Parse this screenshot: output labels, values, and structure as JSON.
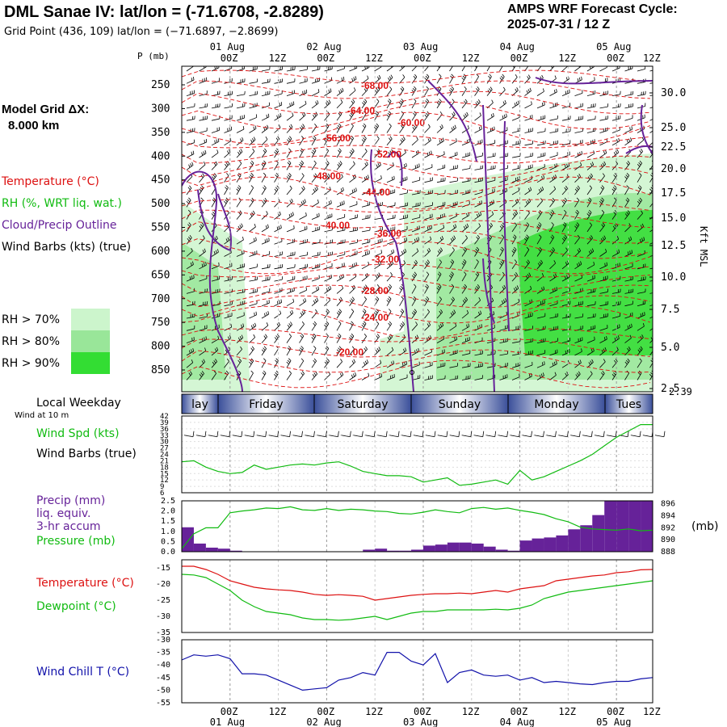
{
  "header": {
    "title": "DML Sanae IV:  lat/lon = (-71.6708, -2.8289)",
    "grid_point": "Grid Point (436, 109) lat/lon = (−71.6897, −2.8699)",
    "cycle_line1": "AMPS WRF Forecast Cycle:",
    "cycle_line2": "2025-07-31 / 12  Z"
  },
  "left_panel": {
    "model_grid_label": "Model Grid ΔX:",
    "model_grid_value": "8.000 km",
    "p_label": "P (mb)",
    "legend": [
      {
        "text": "Temperature (°C)",
        "color": "#dd1111"
      },
      {
        "text": "RH (%, WRT liq. wat.)",
        "color": "#11bb11"
      },
      {
        "text": "Cloud/Precip Outline",
        "color": "#662299"
      },
      {
        "text": "Wind Barbs (kts) (true)",
        "color": "#000000"
      }
    ],
    "rh_legend": [
      {
        "text": "RH > 70%",
        "color": "#ccf5cc"
      },
      {
        "text": "RH > 80%",
        "color": "#99e699"
      },
      {
        "text": "RH > 90%",
        "color": "#33dd33"
      }
    ],
    "right_axis_label": "Kft MSL"
  },
  "colors": {
    "temperature": "#dd1111",
    "rh": "#11bb11",
    "cloud": "#662299",
    "windchill": "#1111aa",
    "precip": "#662299"
  },
  "time_axis": {
    "ticks": [
      "00Z",
      "12Z",
      "00Z",
      "12Z",
      "00Z",
      "12Z",
      "00Z",
      "12Z",
      "00Z",
      "12Z"
    ],
    "dates": [
      "01 Aug",
      "02 Aug",
      "03 Aug",
      "04 Aug",
      "05 Aug"
    ],
    "weekday_label": "Local Weekday",
    "weekdays": [
      "lay",
      "Friday",
      "Saturday",
      "Sunday",
      "Monday",
      "Tues"
    ],
    "wind10m_label": "Wind at 10 m"
  },
  "chart_data": [
    {
      "type": "heatmap",
      "name": "cross-section",
      "y_ticks": [
        "250",
        "300",
        "350",
        "400",
        "450",
        "500",
        "550",
        "600",
        "650",
        "700",
        "750",
        "800",
        "850"
      ],
      "right_ticks": [
        "30.0",
        "25.0",
        "22.5",
        "20.0",
        "17.5",
        "15.0",
        "12.5",
        "10.0",
        "7.5",
        "5.0",
        "2.5"
      ],
      "right_extra": "2.39",
      "temperature_labels": [
        "-68.00",
        "-64.00",
        "-60.00",
        "-56.00",
        "-52.00",
        "-48.00",
        "-44.00",
        "-40.00",
        "-36.00",
        "-32.00",
        "-28.00",
        "-24.00",
        "-20.00"
      ]
    },
    {
      "type": "line",
      "name": "wind-speed",
      "label1": "Wind Spd (kts)",
      "label2": "Wind Barbs (true)",
      "y_ticks": [
        "42",
        "39",
        "36",
        "33",
        "30",
        "27",
        "24",
        "21",
        "18",
        "15",
        "12",
        "9",
        "6"
      ],
      "ylim": [
        6,
        42
      ],
      "x": [
        0,
        3,
        6,
        9,
        12,
        15,
        18,
        21,
        24,
        27,
        30,
        33,
        36,
        39,
        42,
        45,
        48,
        51,
        54,
        57,
        60,
        63,
        66,
        69,
        72,
        75,
        78,
        81,
        84,
        87,
        90,
        93,
        96,
        99,
        102,
        105,
        108,
        111,
        114,
        117
      ],
      "values": [
        20.5,
        21,
        18,
        16,
        15,
        15.5,
        19,
        17,
        18,
        19,
        19.5,
        19,
        20,
        20.5,
        18.5,
        16,
        15,
        14,
        14,
        13.5,
        11,
        12,
        13,
        9.5,
        10,
        11,
        12,
        10,
        16.5,
        12,
        13.5,
        16,
        18.5,
        21,
        24,
        28,
        32,
        35,
        38,
        38
      ]
    },
    {
      "type": "bar",
      "name": "precip-pressure",
      "label1": "Precip (mm)",
      "label2": "liq. equiv.",
      "label3": "3-hr accum",
      "label4": "Pressure (mb)",
      "pressure_unit": "(mb)",
      "left_ticks": [
        "2.5",
        "2.0",
        "1.5",
        "1.0",
        "0.5",
        "0.0"
      ],
      "right_ticks": [
        "896",
        "894",
        "892",
        "890",
        "888"
      ],
      "precip_ylim": [
        0,
        2.5
      ],
      "pressure_ylim": [
        888,
        896.5
      ],
      "precip_x": [
        0,
        3,
        6,
        9,
        12,
        45,
        48,
        51,
        54,
        57,
        60,
        63,
        66,
        69,
        72,
        75,
        78,
        81,
        84,
        87,
        90,
        93,
        96,
        99,
        102,
        105,
        108,
        111,
        114,
        117
      ],
      "precip": [
        1.2,
        0.4,
        0.2,
        0.15,
        0.05,
        0.1,
        0.15,
        0.05,
        0.05,
        0.1,
        0.3,
        0.35,
        0.45,
        0.45,
        0.4,
        0.25,
        0.1,
        0.05,
        0.55,
        0.65,
        0.7,
        0.8,
        1.1,
        1.3,
        1.8,
        2.5,
        2.5,
        2.5,
        2.5,
        2.5
      ],
      "pressure_x": [
        0,
        3,
        6,
        9,
        12,
        15,
        18,
        21,
        24,
        27,
        30,
        33,
        36,
        39,
        42,
        45,
        48,
        51,
        54,
        57,
        60,
        63,
        66,
        69,
        72,
        75,
        78,
        81,
        84,
        87,
        90,
        93,
        96,
        99,
        102,
        105,
        108,
        111,
        114,
        117
      ],
      "pressure": [
        888.5,
        891,
        892,
        892,
        894.5,
        894.8,
        895,
        895.3,
        895.2,
        895.5,
        895,
        894.9,
        895.2,
        894.9,
        895.1,
        895,
        894.8,
        894.7,
        894.4,
        894.3,
        894.6,
        895,
        894.7,
        894.5,
        895.2,
        895.4,
        895.1,
        895.3,
        894.9,
        894.6,
        894.2,
        893.5,
        893,
        892.1,
        891.8,
        891.7,
        891.6,
        891.8,
        891.5,
        891.6
      ]
    },
    {
      "type": "line",
      "name": "temperature-dewpoint",
      "label1": "Temperature (°C)",
      "label2": "Dewpoint (°C)",
      "y_ticks": [
        "-15",
        "-20",
        "-25",
        "-30",
        "-35"
      ],
      "ylim": [
        -35,
        -12.5
      ],
      "x": [
        0,
        3,
        6,
        9,
        12,
        15,
        18,
        21,
        24,
        27,
        30,
        33,
        36,
        39,
        42,
        45,
        48,
        51,
        54,
        57,
        60,
        63,
        66,
        69,
        72,
        75,
        78,
        81,
        84,
        87,
        90,
        93,
        96,
        99,
        102,
        105,
        108,
        111,
        114,
        117
      ],
      "temperature": [
        -14.5,
        -14.5,
        -15.5,
        -17,
        -19,
        -20,
        -21,
        -21.5,
        -21.8,
        -22,
        -22.5,
        -23.2,
        -23.5,
        -23.3,
        -23.5,
        -23.8,
        -25,
        -24.5,
        -24,
        -23.5,
        -23.2,
        -23,
        -23,
        -22.8,
        -23,
        -22.5,
        -22,
        -22.5,
        -21.5,
        -21,
        -20.5,
        -19,
        -18.5,
        -18,
        -17.5,
        -17.2,
        -16.5,
        -16.2,
        -15.6,
        -15.5
      ],
      "dewpoint": [
        -17,
        -17.2,
        -18,
        -20,
        -22,
        -25,
        -27,
        -28.5,
        -29,
        -29.5,
        -30.5,
        -31,
        -31,
        -31.2,
        -31,
        -30.5,
        -30,
        -31,
        -30,
        -29,
        -28.5,
        -28.5,
        -28,
        -28,
        -28,
        -28,
        -27.8,
        -28,
        -27.5,
        -26.5,
        -24.5,
        -23.5,
        -22.5,
        -22,
        -21.5,
        -21,
        -20.5,
        -20,
        -19.5,
        -19
      ]
    },
    {
      "type": "line",
      "name": "wind-chill",
      "label1": "Wind Chill T (°C)",
      "y_ticks": [
        "-30",
        "-35",
        "-40",
        "-45",
        "-50",
        "-55"
      ],
      "ylim": [
        -55,
        -30
      ],
      "x": [
        0,
        3,
        6,
        9,
        12,
        15,
        18,
        21,
        24,
        27,
        30,
        33,
        36,
        39,
        42,
        45,
        48,
        51,
        54,
        57,
        60,
        63,
        66,
        69,
        72,
        75,
        78,
        81,
        84,
        87,
        90,
        93,
        96,
        99,
        102,
        105,
        108,
        111,
        114,
        117
      ],
      "values": [
        -38,
        -36,
        -36.5,
        -36,
        -37.5,
        -43.5,
        -43.5,
        -44,
        -46,
        -48,
        -50,
        -49.5,
        -49,
        -46,
        -45,
        -43,
        -44,
        -35,
        -35,
        -38.5,
        -40,
        -35.5,
        -47,
        -43,
        -42,
        -44,
        -44.5,
        -44,
        -46,
        -45,
        -47,
        -46.5,
        -47,
        -47.5,
        -47.8,
        -47,
        -46.5,
        -46.5,
        -45.5,
        -45
      ]
    }
  ]
}
